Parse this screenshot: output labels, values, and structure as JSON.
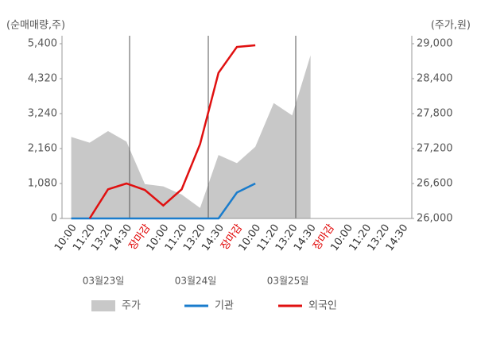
{
  "chart_data": {
    "type": "line",
    "y_axis_label": "(순매매량,주)",
    "y2_axis_label": "(주가,원)",
    "categories": [
      "10:00",
      "11:20",
      "13:20",
      "14:30",
      "장마감",
      "10:00",
      "11:20",
      "13:20",
      "14:30",
      "장마감",
      "10:00",
      "11:20",
      "13:20",
      "14:30",
      "장마감",
      "10:00",
      "11:20",
      "13:20",
      "14:30"
    ],
    "category_colors": [
      "#333",
      "#333",
      "#333",
      "#333",
      "#e00000",
      "#333",
      "#333",
      "#333",
      "#333",
      "#e00000",
      "#333",
      "#333",
      "#333",
      "#333",
      "#e00000",
      "#333",
      "#333",
      "#333",
      "#333"
    ],
    "date_labels": [
      "03월23일",
      "03월24일",
      "03월25일"
    ],
    "series": [
      {
        "name": "주가",
        "color": "#c8c8c8",
        "axis": "y2",
        "style": "area",
        "values": [
          27400,
          27300,
          27500,
          27320,
          26590,
          26550,
          26410,
          26180,
          27090,
          26950,
          27230,
          27980,
          27770,
          28800,
          null,
          null,
          null,
          null,
          null
        ]
      },
      {
        "name": "기관",
        "color": "#1a7ccc",
        "axis": "y",
        "style": "line",
        "values": [
          0,
          0,
          0,
          0,
          0,
          0,
          0,
          0,
          0,
          800,
          1080,
          null,
          null,
          null,
          null,
          null,
          null,
          null,
          null
        ]
      },
      {
        "name": "외국인",
        "color": "#e01010",
        "axis": "y",
        "style": "line",
        "values": [
          null,
          0,
          900,
          1080,
          880,
          400,
          900,
          2300,
          4500,
          5300,
          5350,
          null,
          null,
          null,
          null,
          null,
          null,
          null,
          null
        ]
      }
    ],
    "ylim": [
      0,
      5400
    ],
    "yticks": [
      0,
      {
        "value": 1080,
        "label": "1,080"
      },
      {
        "value": 2160,
        "label": "2,160"
      },
      {
        "value": 3240,
        "label": "3,240"
      },
      {
        "value": 4320,
        "label": "4,320"
      },
      {
        "value": 5400,
        "label": "5,400"
      }
    ],
    "y2lim": [
      26000,
      29000
    ],
    "y2ticks": [
      {
        "value": 26000,
        "label": "26,000"
      },
      {
        "value": 26600,
        "label": "26,600"
      },
      {
        "value": 27200,
        "label": "27,200"
      },
      {
        "value": 27800,
        "label": "27,800"
      },
      {
        "value": 28400,
        "label": "28,400"
      },
      {
        "value": 29000,
        "label": "29,000"
      }
    ]
  }
}
